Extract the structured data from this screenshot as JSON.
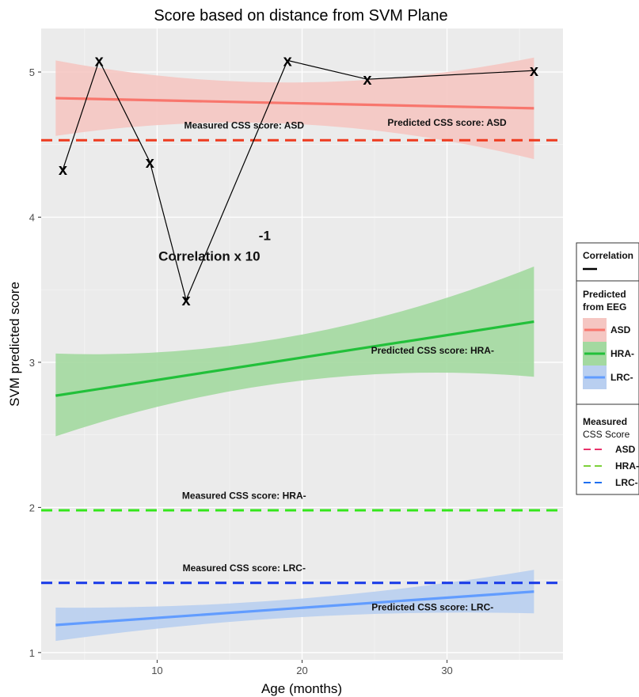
{
  "chart_data": {
    "type": "line",
    "title": "Score based on distance from SVM Plane",
    "xlabel": "Age (months)",
    "ylabel": "SVM predicted score",
    "xlim": [
      2,
      38
    ],
    "ylim": [
      0.95,
      5.3
    ],
    "x_ticks": [
      10,
      20,
      30
    ],
    "y_ticks": [
      1,
      2,
      3,
      4,
      5
    ],
    "grid": true,
    "legend_position": "right",
    "predicted_series": [
      {
        "name": "ASD",
        "color": "#f8766d",
        "fill": "#f5c6c2",
        "x": [
          3,
          36
        ],
        "y": [
          4.82,
          4.75
        ],
        "lower": [
          4.56,
          4.4
        ],
        "upper": [
          5.08,
          5.1
        ],
        "label": "Predicted CSS score: ASD",
        "label_x": 30,
        "label_y": 4.63
      },
      {
        "name": "HRA-",
        "color": "#22c03a",
        "fill": "#a3d9a0",
        "x": [
          3,
          36
        ],
        "y": [
          2.77,
          3.28
        ],
        "lower": [
          2.49,
          2.9
        ],
        "upper": [
          3.06,
          3.66
        ],
        "label": "Predicted CSS score: HRA-",
        "label_x": 29,
        "label_y": 3.06
      },
      {
        "name": "LRC-",
        "color": "#619cff",
        "fill": "#b9cff0",
        "x": [
          3,
          36
        ],
        "y": [
          1.19,
          1.42
        ],
        "lower": [
          1.08,
          1.27
        ],
        "upper": [
          1.31,
          1.57
        ],
        "label": "Predicted CSS score: LRC-",
        "label_x": 29,
        "label_y": 1.29
      }
    ],
    "measured_series": [
      {
        "name": "ASD",
        "color": "#ee3b1f",
        "y": 4.53,
        "label": "Measured CSS score: ASD",
        "label_x": 16,
        "label_y": 4.61
      },
      {
        "name": "HRA-",
        "color": "#33e61a",
        "y": 1.98,
        "label": "Measured CSS score: HRA-",
        "label_x": 16,
        "label_y": 2.06
      },
      {
        "name": "LRC-",
        "color": "#1638e8",
        "y": 1.48,
        "label": "Measured CSS score: LRC-",
        "label_x": 16,
        "label_y": 1.56
      }
    ],
    "correlation_series": {
      "name": "Correlation",
      "marker": "x",
      "x": [
        3.5,
        6,
        9.5,
        12,
        19,
        24.5,
        36
      ],
      "y": [
        4.33,
        5.08,
        4.38,
        3.43,
        5.08,
        4.95,
        5.01
      ]
    },
    "annotations": {
      "correlation_label": "Correlation x 10",
      "correlation_exponent": "-1",
      "correlation_label_x": 13.6,
      "correlation_label_y": 3.7
    }
  },
  "legend": {
    "correlation_title": "Correlation",
    "predicted_title_line1": "Predicted",
    "predicted_title_line2": "from EEG",
    "predicted_items": [
      "ASD",
      "HRA-",
      "LRC-"
    ],
    "measured_title_line1": "Measured",
    "measured_title_line2": "CSS Score",
    "measured_items": [
      "ASD",
      "HRA-",
      "LRC-"
    ]
  },
  "colors": {
    "panel_bg": "#ebebeb",
    "grid_major": "#ffffff",
    "correlation_line": "#000000"
  }
}
